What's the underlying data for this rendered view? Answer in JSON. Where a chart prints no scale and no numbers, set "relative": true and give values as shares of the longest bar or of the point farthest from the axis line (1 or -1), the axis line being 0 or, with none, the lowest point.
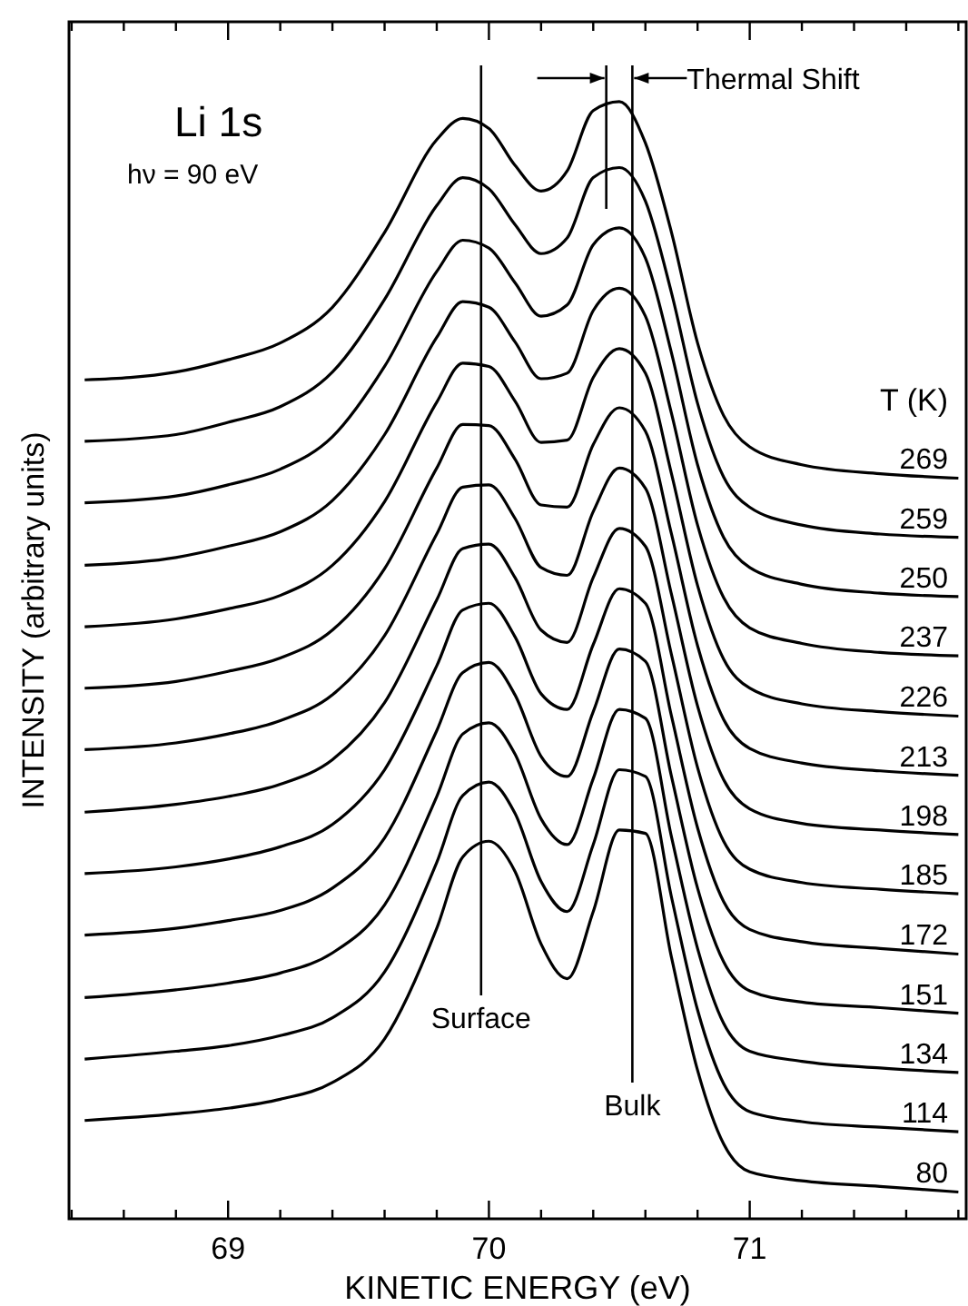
{
  "chart_data": {
    "type": "line",
    "title": "Li 1s",
    "subtitle": "hν = 90 eV",
    "xlabel": "KINETIC ENERGY (eV)",
    "ylabel": "INTENSITY (arbitrary units)",
    "legend_title": "T (K)",
    "relative": true,
    "xlim": [
      68.39,
      71.83
    ],
    "xticks": [
      {
        "value": 68.4,
        "label": null
      },
      {
        "value": 68.6,
        "label": null
      },
      {
        "value": 68.8,
        "label": null
      },
      69,
      {
        "value": 69.2,
        "label": null
      },
      {
        "value": 69.4,
        "label": null
      },
      {
        "value": 69.6,
        "label": null
      },
      {
        "value": 69.8,
        "label": null
      },
      70,
      {
        "value": 70.2,
        "label": null
      },
      {
        "value": 70.4,
        "label": null
      },
      {
        "value": 70.6,
        "label": null
      },
      {
        "value": 70.8,
        "label": null
      },
      71,
      {
        "value": 71.2,
        "label": null
      },
      {
        "value": 71.4,
        "label": null
      },
      {
        "value": 71.6,
        "label": null
      },
      {
        "value": 71.8,
        "label": null
      }
    ],
    "x": [
      68.45,
      68.8,
      69.0,
      69.2,
      69.4,
      69.6,
      69.8,
      69.9,
      70.0,
      70.1,
      70.2,
      70.3,
      70.4,
      70.5,
      70.6,
      70.7,
      70.8,
      70.9,
      71.0,
      71.2,
      71.5,
      71.8
    ],
    "ref_lines": [
      {
        "axis": "x",
        "value": 69.97,
        "label": "Surface"
      },
      {
        "axis": "x",
        "value": 70.55,
        "label": "Bulk"
      },
      {
        "axis": "x",
        "value": 70.45
      }
    ],
    "annotations": [
      "Thermal Shift"
    ],
    "series": [
      {
        "name": "269",
        "color": "#000000",
        "values": [
          0.751,
          0.758,
          0.769,
          0.784,
          0.816,
          0.883,
          0.966,
          0.985,
          0.976,
          0.943,
          0.92,
          0.938,
          0.992,
          1.0,
          0.963,
          0.883,
          0.784,
          0.719,
          0.691,
          0.675,
          0.667,
          0.663
        ]
      },
      {
        "name": "259",
        "color": "#000000",
        "values": [
          0.696,
          0.702,
          0.713,
          0.727,
          0.758,
          0.823,
          0.907,
          0.932,
          0.922,
          0.89,
          0.864,
          0.878,
          0.932,
          0.941,
          0.911,
          0.829,
          0.73,
          0.664,
          0.637,
          0.621,
          0.613,
          0.61
        ]
      },
      {
        "name": "250",
        "color": "#000000",
        "values": [
          0.641,
          0.647,
          0.657,
          0.671,
          0.7,
          0.763,
          0.848,
          0.876,
          0.869,
          0.838,
          0.808,
          0.818,
          0.872,
          0.887,
          0.86,
          0.775,
          0.675,
          0.61,
          0.583,
          0.568,
          0.56,
          0.557
        ]
      },
      {
        "name": "237",
        "color": "#000000",
        "values": [
          0.585,
          0.592,
          0.602,
          0.615,
          0.643,
          0.702,
          0.789,
          0.821,
          0.816,
          0.785,
          0.752,
          0.757,
          0.813,
          0.833,
          0.808,
          0.721,
          0.621,
          0.556,
          0.529,
          0.515,
          0.507,
          0.504
        ]
      },
      {
        "name": "226",
        "color": "#000000",
        "values": [
          0.53,
          0.537,
          0.546,
          0.558,
          0.585,
          0.642,
          0.731,
          0.766,
          0.763,
          0.732,
          0.695,
          0.697,
          0.753,
          0.779,
          0.757,
          0.667,
          0.567,
          0.501,
          0.475,
          0.461,
          0.454,
          0.45
        ]
      },
      {
        "name": "213",
        "color": "#000000",
        "values": [
          0.475,
          0.481,
          0.49,
          0.502,
          0.527,
          0.582,
          0.672,
          0.711,
          0.71,
          0.68,
          0.639,
          0.637,
          0.693,
          0.726,
          0.705,
          0.613,
          0.513,
          0.447,
          0.421,
          0.408,
          0.401,
          0.397
        ]
      },
      {
        "name": "198",
        "color": "#000000",
        "values": [
          0.42,
          0.426,
          0.434,
          0.446,
          0.469,
          0.522,
          0.613,
          0.655,
          0.657,
          0.627,
          0.583,
          0.576,
          0.633,
          0.672,
          0.654,
          0.559,
          0.459,
          0.393,
          0.367,
          0.354,
          0.348,
          0.344
        ]
      },
      {
        "name": "185",
        "color": "#000000",
        "values": [
          0.364,
          0.371,
          0.378,
          0.389,
          0.411,
          0.462,
          0.554,
          0.6,
          0.604,
          0.574,
          0.527,
          0.516,
          0.574,
          0.618,
          0.602,
          0.505,
          0.404,
          0.338,
          0.313,
          0.301,
          0.295,
          0.291
        ]
      },
      {
        "name": "172",
        "color": "#000000",
        "values": [
          0.309,
          0.315,
          0.322,
          0.333,
          0.353,
          0.402,
          0.495,
          0.545,
          0.551,
          0.521,
          0.47,
          0.456,
          0.514,
          0.564,
          0.551,
          0.45,
          0.35,
          0.284,
          0.259,
          0.248,
          0.242,
          0.237
        ]
      },
      {
        "name": "151",
        "color": "#000000",
        "values": [
          0.254,
          0.26,
          0.267,
          0.276,
          0.296,
          0.341,
          0.437,
          0.489,
          0.498,
          0.469,
          0.414,
          0.396,
          0.454,
          0.51,
          0.499,
          0.396,
          0.296,
          0.23,
          0.204,
          0.194,
          0.189,
          0.184
        ]
      },
      {
        "name": "134",
        "color": "#000000",
        "values": [
          0.198,
          0.205,
          0.211,
          0.22,
          0.238,
          0.281,
          0.378,
          0.434,
          0.444,
          0.416,
          0.358,
          0.335,
          0.394,
          0.456,
          0.448,
          0.342,
          0.242,
          0.175,
          0.15,
          0.141,
          0.135,
          0.131
        ]
      },
      {
        "name": "114",
        "color": "#000000",
        "values": [
          0.143,
          0.15,
          0.155,
          0.164,
          0.18,
          0.221,
          0.319,
          0.379,
          0.391,
          0.363,
          0.302,
          0.275,
          0.335,
          0.402,
          0.396,
          0.288,
          0.187,
          0.121,
          0.096,
          0.087,
          0.082,
          0.078
        ]
      },
      {
        "name": "80",
        "color": "#000000",
        "values": [
          0.088,
          0.094,
          0.099,
          0.107,
          0.122,
          0.161,
          0.26,
          0.324,
          0.338,
          0.311,
          0.246,
          0.215,
          0.275,
          0.348,
          0.345,
          0.234,
          0.133,
          0.067,
          0.042,
          0.034,
          0.029,
          0.024
        ]
      }
    ]
  }
}
